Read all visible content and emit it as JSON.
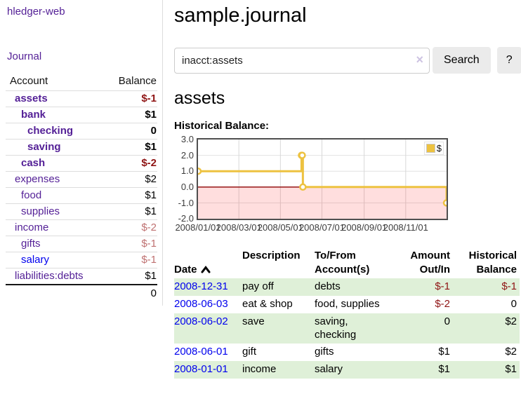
{
  "colors": {
    "purple_link": "#531f96",
    "blue_link": "#0000ee",
    "negative_strong": "#8f1414",
    "negative_soft": "#bf7171",
    "row_stripe_green": "#dff0d8",
    "chart_line_gold": "#EDC240",
    "chart_zero_line": "#8b0000",
    "chart_negative_fill": "rgba(255,0,0,0.13)"
  },
  "sidebar": {
    "app_title": "hledger-web",
    "nav_journal": "Journal",
    "col_account": "Account",
    "col_balance": "Balance",
    "accounts": [
      {
        "name": "assets",
        "depth": 0,
        "bold": true,
        "balance": "$-1"
      },
      {
        "name": "bank",
        "depth": 1,
        "bold": true,
        "balance": "$1"
      },
      {
        "name": "checking",
        "depth": 2,
        "bold": true,
        "balance": "0"
      },
      {
        "name": "saving",
        "depth": 2,
        "bold": true,
        "balance": "$1"
      },
      {
        "name": "cash",
        "depth": 1,
        "bold": true,
        "balance": "$-2"
      },
      {
        "name": "expenses",
        "depth": 0,
        "bold": false,
        "balance": "$2"
      },
      {
        "name": "food",
        "depth": 1,
        "bold": false,
        "balance": "$1"
      },
      {
        "name": "supplies",
        "depth": 1,
        "bold": false,
        "balance": "$1"
      },
      {
        "name": "income",
        "depth": 0,
        "bold": false,
        "balance": "$-2"
      },
      {
        "name": "gifts",
        "depth": 1,
        "bold": false,
        "balance": "$-1"
      },
      {
        "name": "salary",
        "depth": 1,
        "bold": false,
        "balance": "$-1",
        "variant": "unvisited"
      },
      {
        "name": "liabilities:debts",
        "depth": 0,
        "bold": false,
        "balance": "$1"
      }
    ],
    "total_balance": "0"
  },
  "main": {
    "title": "sample.journal",
    "search": {
      "value": "inacct:assets",
      "clear_icon": "×",
      "search_button": "Search",
      "help_button": "?"
    },
    "account_heading": "assets",
    "chart_heading": "Historical Balance:",
    "register": {
      "col_date": "Date",
      "col_description": "Description",
      "col_accounts": "To/From\nAccount(s)",
      "col_amount": "Amount\nOut/In",
      "col_balance": "Historical\nBalance",
      "rows": [
        {
          "date": "2008-12-31",
          "description": "pay off",
          "accounts": "debts",
          "amount": "$-1",
          "balance": "$-1"
        },
        {
          "date": "2008-06-03",
          "description": "eat & shop",
          "accounts": "food, supplies",
          "amount": "$-2",
          "balance": "0"
        },
        {
          "date": "2008-06-02",
          "description": "save",
          "accounts": "saving, checking",
          "amount": "0",
          "balance": "$2"
        },
        {
          "date": "2008-06-01",
          "description": "gift",
          "accounts": "gifts",
          "amount": "$1",
          "balance": "$2"
        },
        {
          "date": "2008-01-01",
          "description": "income",
          "accounts": "salary",
          "amount": "$1",
          "balance": "$1"
        }
      ]
    }
  },
  "chart_data": {
    "type": "line",
    "title": "Historical Balance",
    "step": true,
    "grid": true,
    "legend": {
      "label": "$",
      "position": "top-right"
    },
    "xlim_days": [
      0,
      365
    ],
    "ylim": [
      -2,
      3
    ],
    "y_ticks": [
      "3.0",
      "2.0",
      "1.0",
      "0.0",
      "-1.0",
      "-2.0"
    ],
    "x_ticks": [
      {
        "day": 0,
        "label": "2008/01/01"
      },
      {
        "day": 60,
        "label": "2008/03/01"
      },
      {
        "day": 121,
        "label": "2008/05/01"
      },
      {
        "day": 182,
        "label": "2008/07/01"
      },
      {
        "day": 244,
        "label": "2008/09/01"
      },
      {
        "day": 305,
        "label": "2008/11/01"
      }
    ],
    "series": [
      {
        "name": "$",
        "color": "#EDC240",
        "points": [
          {
            "date": "2008-01-01",
            "day": 0,
            "value": 1
          },
          {
            "date": "2008-06-01",
            "day": 152,
            "value": 2
          },
          {
            "date": "2008-06-02",
            "day": 153,
            "value": 2
          },
          {
            "date": "2008-06-03",
            "day": 154,
            "value": 0
          },
          {
            "date": "2008-12-31",
            "day": 365,
            "value": -1
          }
        ]
      }
    ]
  }
}
